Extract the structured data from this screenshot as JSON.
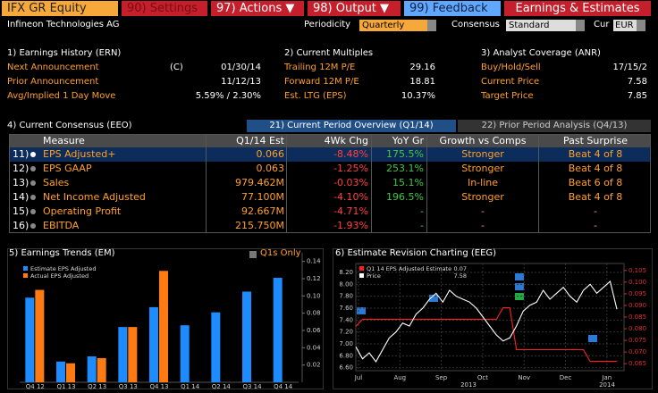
{
  "toolbar": {
    "ticker": "IFX GR Equity",
    "settings": "90) Settings",
    "actions": "97) Actions ▼",
    "output": "98) Output ▼",
    "feedback": "99) Feedback",
    "title": "Earnings & Estimates"
  },
  "subbar": {
    "company": "Infineon Technologies AG",
    "periodicity_label": "Periodicity",
    "periodicity": "Quarterly",
    "consensus_label": "Consensus",
    "consensus": "Standard",
    "cur_label": "Cur",
    "cur": "EUR"
  },
  "sections": [
    {
      "title": "1) Earnings History (ERN)",
      "rows": [
        [
          "Next Announcement",
          "(C)",
          "01/30/14"
        ],
        [
          "Prior Announcement",
          "11/12/13"
        ],
        [
          "Avg/Implied 1 Day Move",
          "5.59% / 2.30%"
        ]
      ]
    },
    {
      "title": "2) Current Multiples",
      "rows": [
        [
          "Trailing 12M P/E",
          "29.16"
        ],
        [
          "Forward 12M P/E",
          "18.81"
        ],
        [
          "Est. LTG (EPS)",
          "10.37%"
        ]
      ]
    },
    {
      "title": "3) Analyst Coverage (ANR)",
      "rows": [
        [
          "Buy/Hold/Sell",
          "17/15/2"
        ],
        [
          "Current Price",
          "7.58"
        ],
        [
          "Target Price",
          "7.85"
        ]
      ]
    }
  ],
  "consensus": {
    "title": "4) Current Consensus (EEO)",
    "tabs": [
      "21) Current Period Overview (Q1/14)",
      "22) Prior Period Analysis (Q4/13)"
    ],
    "columns": [
      "Measure",
      "Q1/14 Est",
      "4Wk Chg",
      "YoY Gr",
      "Growth vs Comps",
      "Past Surprise"
    ],
    "rows": [
      [
        "11)",
        "EPS Adjusted+",
        "0.066",
        "-8.48%",
        "175.5%",
        "Stronger",
        "Beat 4 of 8"
      ],
      [
        "12)",
        "EPS GAAP",
        "0.063",
        "-1.25%",
        "253.1%",
        "Stronger",
        "Beat 4 of 8"
      ],
      [
        "13)",
        "Sales",
        "979.462M",
        "-0.03%",
        "15.1%",
        "In-line",
        "Beat 6 of 8"
      ],
      [
        "14)",
        "Net Income Adjusted",
        "77.100M",
        "-4.10%",
        "196.5%",
        "Stronger",
        "Beat 4 of 8"
      ],
      [
        "15)",
        "Operating Profit",
        "92.667M",
        "-4.71%",
        "-",
        "-",
        "-"
      ],
      [
        "16)",
        "EBITDA",
        "215.750M",
        "-1.93%",
        "-",
        "-",
        "-"
      ]
    ]
  },
  "chart_data": [
    {
      "type": "bar",
      "title": "5) Earnings Trends (EM)",
      "option": "Q1s Only",
      "categories": [
        "Q4 12",
        "Q1 13",
        "Q2 13",
        "Q3 13",
        "Q4 13",
        "Q1 14",
        "Q2 14",
        "Q3 14",
        "Q4 14"
      ],
      "series": [
        {
          "name": "Estimate EPS Adjusted",
          "color": "#1e8cff",
          "values": [
            0.098,
            0.024,
            0.03,
            0.064,
            0.087,
            0.066,
            0.081,
            0.105,
            0.121
          ]
        },
        {
          "name": "Actual EPS Adjusted",
          "color": "#ff7a10",
          "values": [
            0.107,
            0.022,
            0.028,
            0.064,
            0.129,
            null,
            null,
            null,
            null
          ]
        }
      ],
      "ylim": [
        0,
        0.15
      ],
      "yticks": [
        0.02,
        0.04,
        0.06,
        0.08,
        {
          "value": 0.1,
          "label": "0.10"
        },
        0.12,
        0.14
      ]
    },
    {
      "type": "line",
      "title": "6) Estimate Revision Charting (EEG)",
      "x_labels": [
        "Jul",
        "Aug",
        "Sep",
        "Oct",
        "Nov",
        "Dec",
        "Jan"
      ],
      "year_labels": [
        "2013",
        "2014"
      ],
      "series": [
        {
          "name": "Q1 14 EPS Adjusted Estimate",
          "legend_value": "0.07",
          "color": "#ff2020",
          "axis": "y2",
          "values": [
            0.081,
            0.084,
            0.084,
            0.084,
            0.084,
            0.084,
            0.084,
            0.084,
            0.084,
            0.084,
            0.084,
            0.084,
            0.084,
            0.084,
            0.084,
            0.084,
            0.084,
            0.084,
            0.084,
            0.084,
            0.084,
            0.084,
            0.089,
            0.089,
            0.071,
            0.071,
            0.071,
            0.071,
            0.071,
            0.071,
            0.071,
            0.071,
            0.071,
            0.071,
            0.071,
            0.066,
            0.066,
            0.066,
            0.066,
            0.066
          ]
        },
        {
          "name": "Price",
          "legend_value": "7.58",
          "color": "#ffffff",
          "values": [
            6.95,
            6.75,
            6.85,
            6.7,
            6.9,
            7.1,
            7.2,
            7.35,
            7.3,
            7.5,
            7.6,
            7.75,
            7.85,
            7.7,
            7.9,
            7.8,
            7.75,
            7.7,
            7.6,
            7.45,
            7.3,
            7.15,
            7.05,
            7.1,
            7.3,
            7.55,
            7.65,
            7.7,
            7.9,
            7.75,
            7.85,
            7.95,
            7.8,
            7.7,
            7.9,
            8.0,
            7.85,
            7.95,
            8.05,
            7.58
          ]
        }
      ],
      "ylim": [
        6.55,
        8.35
      ],
      "yticks": [
        {
          "value": 6.6,
          "label": "6.60"
        },
        {
          "value": 6.8,
          "label": "6.80"
        },
        {
          "value": 7.0,
          "label": "7.00"
        },
        {
          "value": 7.2,
          "label": "7.20"
        },
        {
          "value": 7.4,
          "label": "7.40"
        },
        {
          "value": 7.6,
          "label": "7.60"
        },
        {
          "value": 7.8,
          "label": "7.80"
        },
        {
          "value": 8.0,
          "label": "8.00"
        },
        {
          "value": 8.2,
          "label": "8.20"
        }
      ],
      "y2lim": [
        0.062,
        0.108
      ],
      "y2ticks": [
        0.065,
        {
          "value": 0.07,
          "label": "0.070"
        },
        0.075,
        {
          "value": 0.08,
          "label": "0.080"
        },
        0.085,
        {
          "value": 0.09,
          "label": "0.090"
        },
        0.095,
        {
          "value": 0.1,
          "label": "0.100"
        },
        0.105
      ],
      "grid": true
    }
  ]
}
